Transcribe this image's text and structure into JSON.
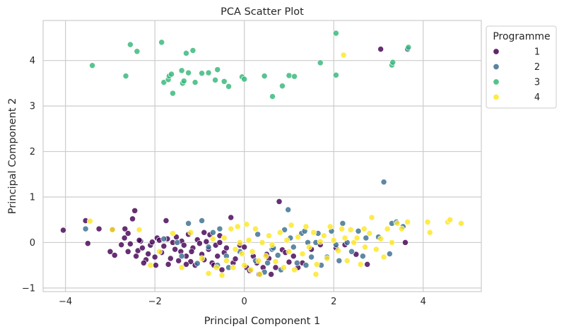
{
  "chart_data": {
    "type": "scatter",
    "title": "PCA Scatter Plot",
    "xlabel": "Principal Component 1",
    "ylabel": "Principal Component 2",
    "xlim": [
      -4.5,
      5.3
    ],
    "ylim": [
      -1.08,
      4.88
    ],
    "xticks": [
      -4,
      -2,
      0,
      2,
      4
    ],
    "yticks": [
      -1,
      0,
      1,
      2,
      3,
      4
    ],
    "grid": true,
    "legend": {
      "title": "Programme",
      "placement": "outside-top-right"
    },
    "series": [
      {
        "name": "1",
        "color": "#440154",
        "points": [
          [
            -4.05,
            0.27
          ],
          [
            -3.55,
            0.48
          ],
          [
            -3.5,
            -0.02
          ],
          [
            -3.25,
            0.3
          ],
          [
            -3.0,
            -0.2
          ],
          [
            -2.95,
            0.29
          ],
          [
            -2.9,
            -0.28
          ],
          [
            -2.75,
            -0.05
          ],
          [
            -2.68,
            0.1
          ],
          [
            -2.67,
            0.3
          ],
          [
            -2.6,
            -0.2
          ],
          [
            -2.55,
            -0.03
          ],
          [
            -2.5,
            0.52
          ],
          [
            -2.45,
            0.7
          ],
          [
            -2.42,
            -0.3
          ],
          [
            -2.38,
            -0.18
          ],
          [
            -2.32,
            0.03
          ],
          [
            -2.28,
            -0.12
          ],
          [
            -2.2,
            -0.38
          ],
          [
            -2.15,
            -0.25
          ],
          [
            -2.1,
            -0.06
          ],
          [
            -2.06,
            0.01
          ],
          [
            -2.0,
            -0.32
          ],
          [
            -1.95,
            0.1
          ],
          [
            -1.9,
            0.05
          ],
          [
            -1.85,
            -0.22
          ],
          [
            -1.8,
            -0.08
          ],
          [
            -1.75,
            0.48
          ],
          [
            -1.7,
            -0.48
          ],
          [
            -1.65,
            -0.35
          ],
          [
            -1.6,
            0.0
          ],
          [
            -1.55,
            -0.15
          ],
          [
            -1.52,
            0.12
          ],
          [
            -1.47,
            -0.4
          ],
          [
            -1.42,
            -0.2
          ],
          [
            -1.4,
            0.03
          ],
          [
            -1.35,
            -0.06
          ],
          [
            -1.3,
            -0.3
          ],
          [
            -1.25,
            0.18
          ],
          [
            -1.2,
            -0.42
          ],
          [
            -1.15,
            -0.12
          ],
          [
            -1.1,
            -0.5
          ],
          [
            -1.05,
            0.06
          ],
          [
            -1.0,
            -0.02
          ],
          [
            -0.95,
            -0.26
          ],
          [
            -0.9,
            -0.38
          ],
          [
            -0.85,
            0.02
          ],
          [
            -0.8,
            -0.15
          ],
          [
            -0.77,
            0.17
          ],
          [
            -0.72,
            -0.45
          ],
          [
            -0.68,
            -0.5
          ],
          [
            -0.64,
            -0.06
          ],
          [
            -0.6,
            -0.3
          ],
          [
            -0.55,
            0.0
          ],
          [
            -0.5,
            -0.6
          ],
          [
            -0.45,
            -0.22
          ],
          [
            -0.4,
            -0.12
          ],
          [
            -0.3,
            0.55
          ],
          [
            -0.25,
            -0.45
          ],
          [
            -0.2,
            -0.36
          ],
          [
            -0.1,
            -0.06
          ],
          [
            0.0,
            -0.1
          ],
          [
            0.05,
            -0.55
          ],
          [
            0.12,
            -0.62
          ],
          [
            0.2,
            -0.3
          ],
          [
            0.28,
            -0.45
          ],
          [
            0.33,
            -0.7
          ],
          [
            0.42,
            -0.55
          ],
          [
            0.5,
            -0.26
          ],
          [
            0.55,
            -0.35
          ],
          [
            0.6,
            -0.7
          ],
          [
            0.7,
            -0.55
          ],
          [
            0.78,
            0.9
          ],
          [
            0.85,
            -0.16
          ],
          [
            0.92,
            -0.22
          ],
          [
            1.0,
            -0.43
          ],
          [
            1.1,
            -0.3
          ],
          [
            1.2,
            -0.55
          ],
          [
            1.3,
            -0.45
          ],
          [
            1.5,
            -0.15
          ],
          [
            1.7,
            -0.05
          ],
          [
            2.05,
            -0.12
          ],
          [
            2.25,
            -0.05
          ],
          [
            2.5,
            -0.26
          ],
          [
            2.75,
            -0.48
          ],
          [
            3.05,
            4.25
          ],
          [
            3.6,
            0.0
          ],
          [
            -2.25,
            -0.45
          ],
          [
            -1.98,
            -0.5
          ],
          [
            -1.3,
            -0.48
          ],
          [
            -0.9,
            0.22
          ],
          [
            -2.6,
            0.2
          ],
          [
            -2.35,
            0.05
          ],
          [
            -1.72,
            0.08
          ],
          [
            -1.18,
            -0.2
          ],
          [
            -0.55,
            0.15
          ]
        ]
      },
      {
        "name": "2",
        "color": "#3b6e90",
        "points": [
          [
            -3.55,
            0.3
          ],
          [
            -1.8,
            0.08
          ],
          [
            -1.5,
            0.0
          ],
          [
            -1.4,
            -0.3
          ],
          [
            -1.25,
            0.42
          ],
          [
            -0.95,
            0.48
          ],
          [
            -0.8,
            -0.1
          ],
          [
            -0.7,
            0.22
          ],
          [
            -0.6,
            -0.5
          ],
          [
            -0.55,
            0.3
          ],
          [
            -0.4,
            -0.3
          ],
          [
            -0.35,
            -0.55
          ],
          [
            -0.1,
            -0.2
          ],
          [
            0.25,
            -0.4
          ],
          [
            0.3,
            0.18
          ],
          [
            0.45,
            -0.65
          ],
          [
            0.52,
            -0.45
          ],
          [
            0.62,
            -0.15
          ],
          [
            0.75,
            -0.28
          ],
          [
            0.82,
            -0.6
          ],
          [
            0.9,
            0.28
          ],
          [
            0.98,
            0.72
          ],
          [
            1.03,
            0.1
          ],
          [
            1.1,
            -0.1
          ],
          [
            1.18,
            -0.45
          ],
          [
            1.28,
            0.2
          ],
          [
            1.35,
            0.25
          ],
          [
            1.42,
            0.0
          ],
          [
            1.5,
            -0.32
          ],
          [
            1.6,
            0.0
          ],
          [
            1.65,
            0.2
          ],
          [
            1.72,
            -0.5
          ],
          [
            1.85,
            -0.32
          ],
          [
            1.95,
            0.25
          ],
          [
            2.05,
            -0.05
          ],
          [
            2.12,
            -0.4
          ],
          [
            2.2,
            0.42
          ],
          [
            2.3,
            0.0
          ],
          [
            2.4,
            -0.2
          ],
          [
            2.55,
            0.25
          ],
          [
            2.65,
            -0.3
          ],
          [
            2.72,
            0.1
          ],
          [
            3.0,
            0.12
          ],
          [
            3.12,
            1.33
          ],
          [
            3.25,
            -0.25
          ],
          [
            3.3,
            0.42
          ],
          [
            3.4,
            0.45
          ],
          [
            3.55,
            0.35
          ],
          [
            3.65,
            4.25
          ],
          [
            0.65,
            -0.12
          ],
          [
            1.38,
            -0.5
          ],
          [
            -1.05,
            -0.46
          ]
        ]
      },
      {
        "name": "3",
        "color": "#35b779",
        "points": [
          [
            -3.4,
            3.89
          ],
          [
            -2.65,
            3.66
          ],
          [
            -2.55,
            4.35
          ],
          [
            -2.4,
            4.2
          ],
          [
            -1.85,
            4.4
          ],
          [
            -1.8,
            3.52
          ],
          [
            -1.7,
            3.58
          ],
          [
            -1.68,
            3.66
          ],
          [
            -1.63,
            3.7
          ],
          [
            -1.6,
            3.28
          ],
          [
            -1.4,
            3.78
          ],
          [
            -1.38,
            3.5
          ],
          [
            -1.35,
            3.55
          ],
          [
            -1.3,
            4.16
          ],
          [
            -1.25,
            3.73
          ],
          [
            -1.15,
            4.22
          ],
          [
            -1.1,
            3.52
          ],
          [
            -0.95,
            3.72
          ],
          [
            -0.8,
            3.73
          ],
          [
            -0.65,
            3.57
          ],
          [
            -0.6,
            3.8
          ],
          [
            -0.45,
            3.54
          ],
          [
            -0.35,
            3.43
          ],
          [
            -0.05,
            3.64
          ],
          [
            -0.0,
            3.59
          ],
          [
            0.45,
            3.66
          ],
          [
            0.63,
            3.21
          ],
          [
            0.85,
            3.44
          ],
          [
            1.0,
            3.67
          ],
          [
            1.12,
            3.65
          ],
          [
            1.7,
            3.95
          ],
          [
            2.05,
            4.6
          ],
          [
            2.05,
            3.68
          ],
          [
            3.3,
            3.9
          ],
          [
            3.32,
            3.96
          ],
          [
            3.67,
            4.29
          ]
        ]
      },
      {
        "name": "4",
        "color": "#fde725",
        "points": [
          [
            -3.45,
            0.47
          ],
          [
            -2.95,
            0.28
          ],
          [
            -2.35,
            0.28
          ],
          [
            -2.1,
            -0.5
          ],
          [
            -1.9,
            -0.2
          ],
          [
            -1.6,
            0.2
          ],
          [
            -1.4,
            -0.55
          ],
          [
            -1.2,
            0.22
          ],
          [
            -0.95,
            -0.35
          ],
          [
            -0.8,
            -0.68
          ],
          [
            -0.7,
            0.08
          ],
          [
            -0.62,
            -0.55
          ],
          [
            -0.5,
            -0.72
          ],
          [
            -0.45,
            0.1
          ],
          [
            -0.4,
            -0.4
          ],
          [
            -0.3,
            0.3
          ],
          [
            -0.25,
            -0.55
          ],
          [
            -0.15,
            0.35
          ],
          [
            -0.1,
            0.0
          ],
          [
            -0.05,
            -0.25
          ],
          [
            0.0,
            -0.5
          ],
          [
            0.05,
            0.4
          ],
          [
            0.1,
            0.05
          ],
          [
            0.18,
            -0.2
          ],
          [
            0.25,
            0.3
          ],
          [
            0.32,
            -0.4
          ],
          [
            0.4,
            0.0
          ],
          [
            0.48,
            -0.3
          ],
          [
            0.55,
            0.15
          ],
          [
            0.62,
            -0.05
          ],
          [
            0.7,
            -0.42
          ],
          [
            0.8,
            0.22
          ],
          [
            0.88,
            -0.55
          ],
          [
            0.95,
            0.05
          ],
          [
            1.05,
            0.38
          ],
          [
            1.12,
            -0.6
          ],
          [
            1.2,
            0.12
          ],
          [
            1.3,
            -0.25
          ],
          [
            1.38,
            0.35
          ],
          [
            1.45,
            -0.1
          ],
          [
            1.55,
            0.22
          ],
          [
            1.62,
            -0.48
          ],
          [
            1.7,
            0.02
          ],
          [
            1.78,
            0.15
          ],
          [
            1.85,
            -0.35
          ],
          [
            1.92,
            0.35
          ],
          [
            2.0,
            0.05
          ],
          [
            2.1,
            -0.18
          ],
          [
            2.18,
            0.3
          ],
          [
            2.22,
            4.12
          ],
          [
            2.3,
            -0.4
          ],
          [
            2.38,
            0.28
          ],
          [
            2.45,
            0.0
          ],
          [
            2.52,
            0.1
          ],
          [
            2.6,
            -0.48
          ],
          [
            2.68,
            0.3
          ],
          [
            2.8,
            0.2
          ],
          [
            2.85,
            0.55
          ],
          [
            2.95,
            -0.15
          ],
          [
            3.05,
            0.08
          ],
          [
            3.12,
            -0.32
          ],
          [
            3.2,
            0.3
          ],
          [
            3.3,
            0.0
          ],
          [
            3.42,
            0.42
          ],
          [
            3.52,
            0.3
          ],
          [
            3.65,
            0.45
          ],
          [
            4.1,
            0.45
          ],
          [
            4.15,
            0.22
          ],
          [
            4.55,
            0.45
          ],
          [
            4.6,
            0.5
          ],
          [
            4.85,
            0.42
          ],
          [
            0.35,
            -0.7
          ],
          [
            0.15,
            -0.6
          ],
          [
            -0.2,
            -0.15
          ],
          [
            1.0,
            -0.2
          ],
          [
            1.6,
            -0.7
          ],
          [
            2.25,
            0.1
          ],
          [
            2.7,
            -0.1
          ]
        ]
      }
    ]
  }
}
